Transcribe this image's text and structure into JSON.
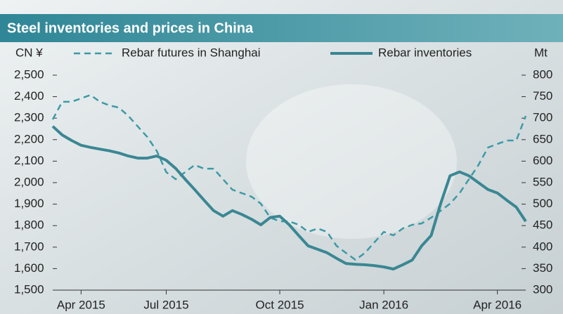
{
  "chart_data": {
    "type": "line",
    "title": "Steel inventories and prices in China",
    "y_label": "CN ¥",
    "y2_label": "Mt",
    "categories": [
      null,
      null,
      null,
      "Apr 2015",
      null,
      null,
      null,
      null,
      null,
      null,
      null,
      null,
      "Jul 2015",
      null,
      null,
      null,
      null,
      null,
      null,
      null,
      null,
      null,
      null,
      null,
      "Oct 2015",
      null,
      null,
      null,
      null,
      null,
      null,
      null,
      null,
      null,
      null,
      "Jan 2016",
      null,
      null,
      null,
      null,
      null,
      null,
      null,
      null,
      null,
      null,
      null,
      "Apr 2016",
      null,
      null,
      null
    ],
    "series": [
      {
        "name": "Rebar futures in Shanghai",
        "color": "#3d9aa6",
        "dashed": true,
        "values": [
          2294,
          2376,
          2376,
          2392,
          2408,
          2376,
          2359,
          2349,
          2310,
          2261,
          2212,
          2147,
          2049,
          2016,
          2049,
          2082,
          2065,
          2065,
          2016,
          1967,
          1951,
          1935,
          1902,
          1837,
          1820,
          1820,
          1804,
          1771,
          1787,
          1771,
          1706,
          1673,
          1641,
          1673,
          1722,
          1771,
          1755,
          1787,
          1804,
          1810,
          1837,
          1869,
          1902,
          1951,
          2016,
          2082,
          2163,
          2180,
          2196,
          2196,
          2310
        ]
      },
      {
        "name": "Rebar inventories",
        "color": "#3a8793",
        "axis": "y2",
        "values": [
          681,
          661,
          648,
          637,
          632,
          628,
          624,
          619,
          612,
          607,
          607,
          612,
          602,
          583,
          558,
          534,
          509,
          485,
          472,
          485,
          476,
          465,
          452,
          469,
          472,
          452,
          427,
          403,
          395,
          387,
          374,
          362,
          360,
          359,
          357,
          354,
          349,
          359,
          370,
          403,
          427,
          501,
          566,
          575,
          566,
          550,
          534,
          526,
          509,
          493,
          460
        ]
      }
    ],
    "ylim": [
      1500,
      2500
    ],
    "yticks": [
      {
        "value": 1500,
        "label": "1,500"
      },
      {
        "value": 1600,
        "label": "1,600"
      },
      {
        "value": 1700,
        "label": "1,700"
      },
      {
        "value": 1800,
        "label": "1,800"
      },
      {
        "value": 1900,
        "label": "1,900"
      },
      {
        "value": 2000,
        "label": "2,000"
      },
      {
        "value": 2100,
        "label": "2,100"
      },
      {
        "value": 2200,
        "label": "2,200"
      },
      {
        "value": 2300,
        "label": "2,300"
      },
      {
        "value": 2400,
        "label": "2,400"
      },
      {
        "value": 2500,
        "label": "2,500"
      }
    ],
    "y2lim": [
      300,
      800
    ],
    "y2ticks": [
      300,
      350,
      400,
      450,
      500,
      550,
      600,
      650,
      700,
      750,
      800
    ]
  }
}
